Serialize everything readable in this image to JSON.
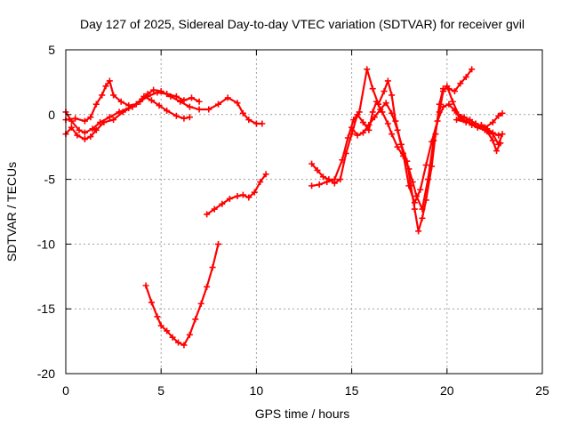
{
  "chart_data": {
    "type": "scatter",
    "title": "Day 127 of 2025, Sidereal Day-to-day VTEC variation (SDTVAR) for receiver gvil",
    "xlabel": "GPS time / hours",
    "ylabel": "SDTVAR / TECUs",
    "xlim": [
      0,
      25
    ],
    "ylim": [
      -20,
      5
    ],
    "xticks": [
      "0",
      "5",
      "10",
      "15",
      "20",
      "25"
    ],
    "yticks": [
      "5",
      "0",
      "-5",
      "-10",
      "-15",
      "-20"
    ],
    "grid": true,
    "marker": "plus",
    "color": "#ff0000",
    "series": [
      {
        "points": [
          [
            0,
            -1.5
          ],
          [
            0.3,
            -1.0
          ],
          [
            0.6,
            -1.6
          ],
          [
            1.0,
            -1.9
          ],
          [
            1.3,
            -1.7
          ],
          [
            1.6,
            -1.2
          ],
          [
            2.0,
            -0.6
          ],
          [
            2.5,
            -0.4
          ],
          [
            3.0,
            0.2
          ],
          [
            3.5,
            0.6
          ],
          [
            4.0,
            1.2
          ],
          [
            4.3,
            1.6
          ],
          [
            4.6,
            1.9
          ],
          [
            5.0,
            1.8
          ],
          [
            5.5,
            1.4
          ],
          [
            6.0,
            1.0
          ],
          [
            6.5,
            0.6
          ],
          [
            7.0,
            0.4
          ],
          [
            7.5,
            0.4
          ],
          [
            8.0,
            0.8
          ],
          [
            8.5,
            1.3
          ],
          [
            9.0,
            0.9
          ],
          [
            9.3,
            0.1
          ],
          [
            9.6,
            -0.4
          ],
          [
            10.0,
            -0.7
          ],
          [
            10.3,
            -0.7
          ]
        ]
      },
      {
        "points": [
          [
            0,
            -0.4
          ],
          [
            0.5,
            -0.3
          ],
          [
            1.0,
            -0.5
          ],
          [
            1.3,
            -0.2
          ],
          [
            1.6,
            0.8
          ],
          [
            1.9,
            1.5
          ],
          [
            2.1,
            2.2
          ],
          [
            2.3,
            2.6
          ],
          [
            2.5,
            1.5
          ],
          [
            2.9,
            1.0
          ],
          [
            3.3,
            0.7
          ],
          [
            3.7,
            0.8
          ],
          [
            4.1,
            1.4
          ],
          [
            4.5,
            1.1
          ],
          [
            4.9,
            0.7
          ],
          [
            5.3,
            0.3
          ],
          [
            5.8,
            -0.1
          ],
          [
            6.2,
            -0.3
          ],
          [
            6.5,
            -0.2
          ]
        ]
      },
      {
        "points": [
          [
            0,
            0.2
          ],
          [
            0.3,
            -0.5
          ],
          [
            0.7,
            -1.2
          ],
          [
            1.0,
            -1.4
          ],
          [
            1.4,
            -1.1
          ],
          [
            1.8,
            -0.6
          ],
          [
            2.3,
            -0.2
          ],
          [
            2.8,
            0.2
          ],
          [
            3.3,
            0.5
          ],
          [
            3.9,
            1.0
          ],
          [
            4.3,
            1.4
          ],
          [
            4.8,
            1.7
          ],
          [
            5.3,
            1.6
          ],
          [
            5.8,
            1.4
          ],
          [
            6.2,
            1.1
          ],
          [
            6.6,
            1.3
          ],
          [
            7.0,
            1.0
          ]
        ]
      },
      {
        "points": [
          [
            4.2,
            -13.2
          ],
          [
            4.5,
            -14.5
          ],
          [
            4.8,
            -15.6
          ],
          [
            5.0,
            -16.3
          ],
          [
            5.3,
            -16.7
          ],
          [
            5.6,
            -17.2
          ],
          [
            5.9,
            -17.6
          ],
          [
            6.2,
            -17.8
          ],
          [
            6.5,
            -17.0
          ],
          [
            6.8,
            -15.8
          ],
          [
            7.1,
            -14.6
          ],
          [
            7.4,
            -13.3
          ],
          [
            7.7,
            -11.8
          ],
          [
            8.0,
            -10.0
          ]
        ]
      },
      {
        "points": [
          [
            7.4,
            -7.7
          ],
          [
            7.8,
            -7.3
          ],
          [
            8.2,
            -6.9
          ],
          [
            8.6,
            -6.5
          ],
          [
            9.0,
            -6.3
          ],
          [
            9.3,
            -6.2
          ],
          [
            9.6,
            -6.4
          ],
          [
            9.9,
            -6.0
          ],
          [
            10.2,
            -5.2
          ],
          [
            10.5,
            -4.6
          ]
        ]
      },
      {
        "points": [
          [
            12.9,
            -3.8
          ],
          [
            13.2,
            -4.3
          ],
          [
            13.5,
            -4.8
          ],
          [
            13.8,
            -5.0
          ],
          [
            14.1,
            -5.3
          ],
          [
            14.4,
            -5.0
          ],
          [
            14.7,
            -3.0
          ],
          [
            15.0,
            -1.5
          ],
          [
            15.3,
            0.0
          ],
          [
            15.6,
            -0.6
          ],
          [
            15.9,
            -1.2
          ],
          [
            16.1,
            0.2
          ],
          [
            16.3,
            1.0
          ],
          [
            16.6,
            0.2
          ],
          [
            16.9,
            -0.7
          ],
          [
            17.1,
            -1.5
          ],
          [
            17.4,
            -2.5
          ],
          [
            17.7,
            -3.2
          ],
          [
            18.0,
            -4.2
          ],
          [
            18.2,
            -5.2
          ],
          [
            18.4,
            -6.3
          ],
          [
            18.7,
            -7.3
          ],
          [
            19.0,
            -5.0
          ],
          [
            19.3,
            -2.0
          ],
          [
            19.6,
            0.2
          ],
          [
            19.8,
            1.8
          ],
          [
            20.0,
            2.2
          ],
          [
            20.3,
            1.0
          ],
          [
            20.6,
            0.0
          ],
          [
            20.9,
            -0.2
          ],
          [
            21.2,
            -0.4
          ],
          [
            21.5,
            -0.7
          ],
          [
            21.8,
            -0.9
          ],
          [
            22.1,
            -1.1
          ],
          [
            22.4,
            -1.4
          ],
          [
            22.7,
            -1.6
          ]
        ]
      },
      {
        "points": [
          [
            12.9,
            -5.5
          ],
          [
            13.3,
            -5.4
          ],
          [
            13.7,
            -5.2
          ],
          [
            14.1,
            -5.0
          ],
          [
            14.5,
            -3.5
          ],
          [
            14.8,
            -1.8
          ],
          [
            15.1,
            -0.4
          ],
          [
            15.4,
            0.2
          ],
          [
            15.8,
            3.5
          ],
          [
            16.1,
            2.0
          ],
          [
            16.4,
            0.8
          ],
          [
            16.7,
            1.8
          ],
          [
            16.9,
            2.6
          ],
          [
            17.1,
            1.5
          ],
          [
            17.3,
            -0.5
          ],
          [
            17.6,
            -2.3
          ],
          [
            17.9,
            -3.6
          ],
          [
            18.1,
            -5.5
          ],
          [
            18.3,
            -7.3
          ],
          [
            18.5,
            -9.0
          ],
          [
            18.7,
            -8.0
          ],
          [
            18.9,
            -6.6
          ],
          [
            19.2,
            -4.0
          ],
          [
            19.4,
            -1.5
          ],
          [
            19.6,
            0.8
          ],
          [
            19.8,
            2.0
          ],
          [
            20.1,
            2.0
          ],
          [
            20.4,
            1.8
          ],
          [
            20.7,
            2.4
          ],
          [
            21.0,
            2.9
          ],
          [
            21.3,
            3.5
          ]
        ]
      },
      {
        "points": [
          [
            15.0,
            -1.0
          ],
          [
            15.3,
            -1.6
          ],
          [
            15.6,
            -1.4
          ],
          [
            15.9,
            -0.8
          ],
          [
            16.2,
            -0.2
          ],
          [
            16.5,
            0.4
          ],
          [
            16.8,
            0.9
          ],
          [
            17.1,
            0.1
          ],
          [
            17.4,
            -1.2
          ],
          [
            17.7,
            -3.0
          ],
          [
            18.0,
            -5.5
          ],
          [
            18.3,
            -6.8
          ],
          [
            18.6,
            -5.8
          ],
          [
            18.9,
            -3.9
          ],
          [
            19.2,
            -2.1
          ],
          [
            19.5,
            -0.5
          ],
          [
            19.8,
            0.6
          ],
          [
            20.1,
            0.8
          ],
          [
            20.4,
            0.3
          ],
          [
            20.7,
            -0.3
          ],
          [
            21.0,
            -0.5
          ],
          [
            21.3,
            -0.8
          ],
          [
            21.6,
            -1.0
          ],
          [
            22.0,
            -1.2
          ],
          [
            22.4,
            -1.5
          ],
          [
            22.7,
            -2.3
          ],
          [
            22.9,
            -1.5
          ]
        ]
      },
      {
        "points": [
          [
            20.5,
            -0.4
          ],
          [
            21.0,
            -0.6
          ],
          [
            21.5,
            -0.7
          ],
          [
            22.0,
            -1.0
          ],
          [
            22.4,
            -0.6
          ],
          [
            22.7,
            -0.1
          ],
          [
            22.9,
            0.1
          ]
        ]
      },
      {
        "points": [
          [
            21.8,
            -0.8
          ],
          [
            22.1,
            -1.3
          ],
          [
            22.4,
            -2.0
          ],
          [
            22.6,
            -2.8
          ],
          [
            22.8,
            -2.2
          ]
        ]
      }
    ]
  }
}
